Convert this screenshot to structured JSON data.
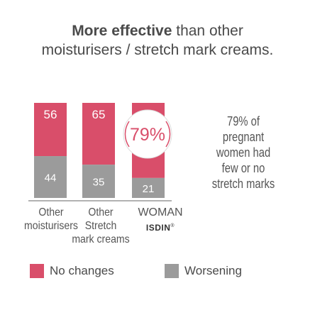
{
  "title": {
    "bold": "More effective",
    "rest1": " than other",
    "line2": "moisturisers / stretch mark creams."
  },
  "colors": {
    "no_changes": "#d94e6a",
    "worsening": "#9b9b9b"
  },
  "chart_data": {
    "type": "bar",
    "stacked": true,
    "categories": [
      "Other moisturisers",
      "Other Stretch mark creams",
      "WOMAN ISDIN"
    ],
    "series": [
      {
        "name": "No changes",
        "values": [
          56,
          65,
          79
        ]
      },
      {
        "name": "Worsening",
        "values": [
          44,
          35,
          21
        ]
      }
    ],
    "ylim": [
      0,
      100
    ],
    "highlight_label": "79%",
    "annotation": "79% of pregnant women had few or no stretch marks"
  },
  "xlabels": [
    {
      "line1": "Other",
      "line2": "moisturisers"
    },
    {
      "line1": "Other",
      "line2": "Stretch",
      "line3": "mark creams"
    },
    {
      "line1": "WOMAN",
      "brand": "ISDIN",
      "mark": "®"
    }
  ],
  "legend": [
    "No changes",
    "Worsening"
  ]
}
